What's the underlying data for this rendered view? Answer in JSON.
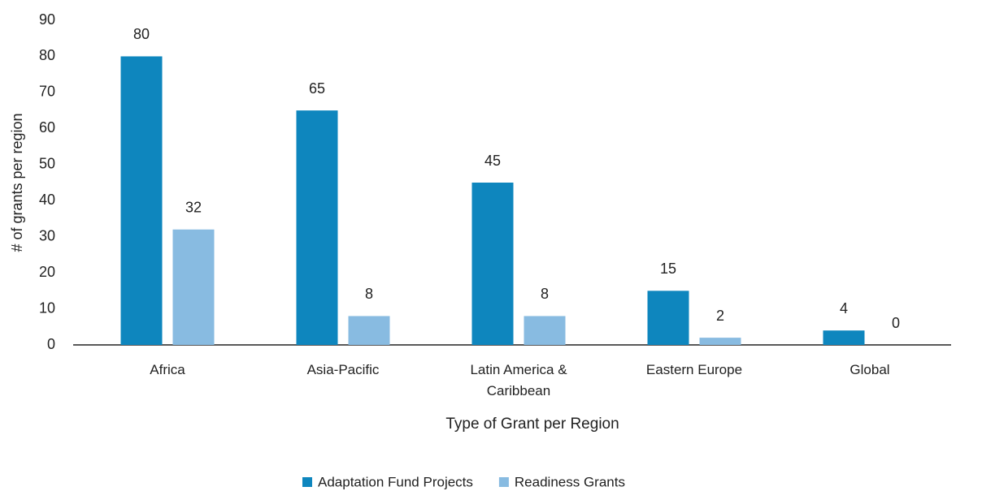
{
  "chart_data": {
    "type": "bar",
    "x_label": "Type of Grant per Region",
    "y_label": "# of grants per region",
    "categories": [
      "Africa",
      "Asia-Pacific",
      "Latin America & Caribbean",
      "Eastern Europe",
      "Global"
    ],
    "series": [
      {
        "name": "Adaptation Fund Projects",
        "color": "#0e86be",
        "values": [
          80,
          65,
          45,
          15,
          4
        ]
      },
      {
        "name": "Readiness Grants",
        "color": "#88bbe1",
        "values": [
          32,
          8,
          8,
          2,
          0
        ]
      }
    ],
    "ylim": [
      0,
      90
    ],
    "yticks": [
      0,
      10,
      20,
      30,
      40,
      50,
      60,
      70,
      80,
      90
    ],
    "grid": false,
    "legend": "bottom"
  }
}
